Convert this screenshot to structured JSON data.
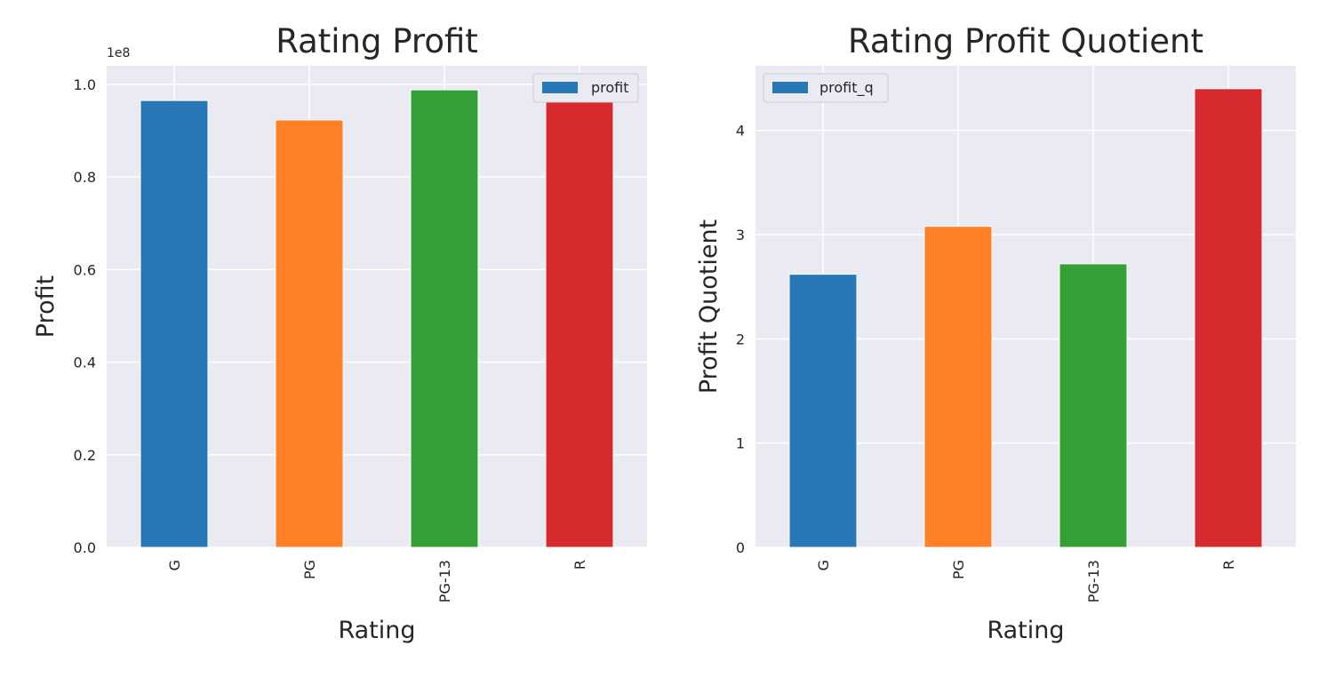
{
  "chart_data": [
    {
      "type": "bar",
      "title": "Rating Profit",
      "xlabel": "Rating",
      "ylabel": "Profit",
      "categories": [
        "G",
        "PG",
        "PG-13",
        "R"
      ],
      "series": [
        {
          "name": "profit",
          "values": [
            96500000,
            92300000,
            98800000,
            97000000
          ]
        }
      ],
      "colors": [
        "#2878b5",
        "#ff7f27",
        "#35a035",
        "#d62a2f"
      ],
      "ylim": [
        0,
        104000000
      ],
      "yticks": [
        0,
        20000000,
        40000000,
        60000000,
        80000000,
        100000000
      ],
      "ytick_labels": [
        "0.0",
        "0.2",
        "0.4",
        "0.6",
        "0.8",
        "1.0"
      ],
      "offset_label": "1e8",
      "legend": "top-right",
      "grid": true
    },
    {
      "type": "bar",
      "title": "Rating Profit Quotient",
      "xlabel": "Rating",
      "ylabel": "Profit Quotient",
      "categories": [
        "G",
        "PG",
        "PG-13",
        "R"
      ],
      "series": [
        {
          "name": "profit_q",
          "values": [
            2.62,
            3.08,
            2.72,
            4.4
          ]
        }
      ],
      "colors": [
        "#2878b5",
        "#ff7f27",
        "#35a035",
        "#d62a2f"
      ],
      "ylim": [
        0,
        4.62
      ],
      "yticks": [
        0,
        1,
        2,
        3,
        4
      ],
      "ytick_labels": [
        "0",
        "1",
        "2",
        "3",
        "4"
      ],
      "offset_label": "",
      "legend": "top-left",
      "grid": true
    }
  ]
}
